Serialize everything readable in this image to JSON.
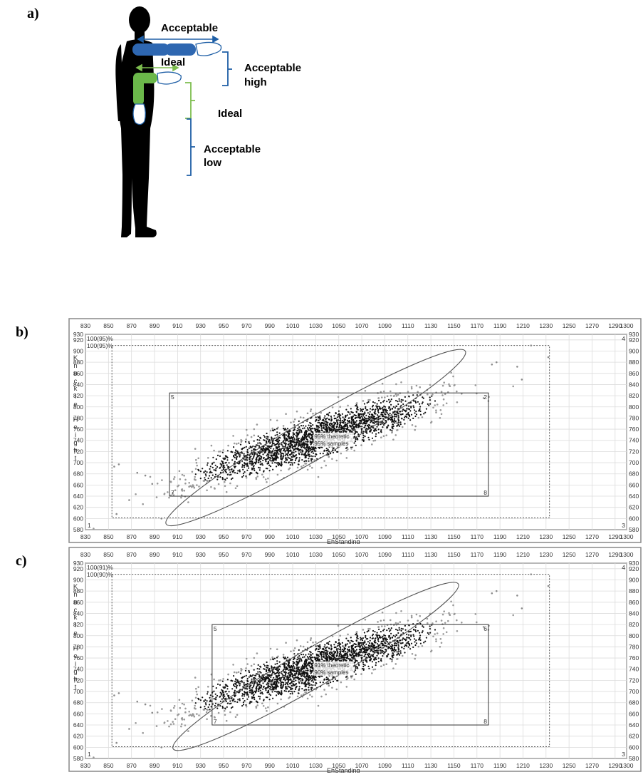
{
  "panels": {
    "a": {
      "label": "a)",
      "text_acceptable": "Acceptable",
      "text_ideal_arm": "Ideal",
      "text_acceptable_high_1": "Acceptable",
      "text_acceptable_high_2": "high",
      "text_ideal": "Ideal",
      "text_acceptable_low_1": "Acceptable",
      "text_acceptable_low_2": "low",
      "colors": {
        "body": "#000000",
        "upper_arm": "#2e67b1",
        "lower_arm": "#6bb84a",
        "hand": "#ffffff",
        "blue_bracket": "#1f5fa6",
        "green_bracket": "#7dbd4f"
      }
    },
    "b": {
      "label": "b)"
    },
    "c": {
      "label": "c)"
    }
  },
  "chart_data": [
    {
      "type": "scatter",
      "panel": "b",
      "xlabel": "EhStanding",
      "ylabel": "Knuckle Height",
      "xlim": [
        830,
        1300
      ],
      "ylim": [
        580,
        930
      ],
      "x_ticks": [
        830,
        850,
        870,
        890,
        910,
        930,
        950,
        970,
        990,
        1010,
        1030,
        1050,
        1070,
        1090,
        1110,
        1130,
        1150,
        1170,
        1190,
        1210,
        1230,
        1250,
        1270,
        1290,
        1300
      ],
      "y_ticks": [
        580,
        600,
        620,
        640,
        660,
        680,
        700,
        720,
        740,
        760,
        780,
        800,
        820,
        840,
        860,
        880,
        900,
        920,
        930
      ],
      "corner_labels": {
        "top_left": "100(95)%",
        "second_left": "100(95)%"
      },
      "annotations": [
        "95% theoretic",
        "95% samples"
      ],
      "rect_solid": {
        "x": [
          903,
          1180
        ],
        "y": [
          640,
          825
        ],
        "corners": [
          "5",
          "2",
          "7",
          "8"
        ]
      },
      "rect_dashed": {
        "x": [
          853,
          1233
        ],
        "y": [
          601,
          910
        ]
      },
      "ellipse": {
        "center": [
          1030,
          745
        ],
        "semi_major": 150,
        "semi_minor": 24,
        "angle_deg": 30
      },
      "side_labels": {
        "top_right": "4",
        "bottom_left": "1",
        "bottom_right": "3"
      },
      "points": {
        "count": 2400,
        "center": [
          1030,
          745
        ],
        "sd_x": 50,
        "sd_y": 37,
        "r": 0.86,
        "color": "#111111"
      },
      "outliers": [
        [
          857,
          608
        ],
        [
          859,
          697
        ],
        [
          855,
          693
        ],
        [
          868,
          633
        ],
        [
          875,
          682
        ],
        [
          882,
          677
        ],
        [
          888,
          662
        ],
        [
          896,
          600
        ],
        [
          1183,
          876
        ],
        [
          1187,
          880
        ],
        [
          1205,
          872
        ],
        [
          1209,
          849
        ],
        [
          1217,
          910
        ],
        [
          1232,
          889
        ]
      ]
    },
    {
      "type": "scatter",
      "panel": "c",
      "xlabel": "EhStanding",
      "ylabel": "Knuckle Height",
      "xlim": [
        830,
        1300
      ],
      "ylim": [
        580,
        930
      ],
      "x_ticks": [
        830,
        850,
        870,
        890,
        910,
        930,
        950,
        970,
        990,
        1010,
        1030,
        1050,
        1070,
        1090,
        1110,
        1130,
        1150,
        1170,
        1190,
        1210,
        1230,
        1250,
        1270,
        1290,
        1300
      ],
      "y_ticks": [
        580,
        600,
        620,
        640,
        660,
        680,
        700,
        720,
        740,
        760,
        780,
        800,
        820,
        840,
        860,
        880,
        900,
        920,
        930
      ],
      "corner_labels": {
        "top_left": "100(91)%",
        "second_left": "100(90)%"
      },
      "annotations": [
        "91% theoretic",
        "90% samples"
      ],
      "rect_solid": {
        "x": [
          940,
          1180
        ],
        "y": [
          640,
          820
        ],
        "corners": [
          "5",
          "6",
          "7",
          "8"
        ]
      },
      "rect_dashed": {
        "x": [
          853,
          1233
        ],
        "y": [
          601,
          910
        ]
      },
      "ellipse": {
        "center": [
          1030,
          745
        ],
        "semi_major": 143,
        "semi_minor": 23,
        "angle_deg": 30
      },
      "side_labels": {
        "top_right": "4",
        "bottom_left": "1",
        "bottom_right": "3"
      },
      "points": {
        "count": 2400,
        "center": [
          1030,
          745
        ],
        "sd_x": 50,
        "sd_y": 37,
        "r": 0.86,
        "color": "#111111"
      },
      "outliers": [
        [
          857,
          608
        ],
        [
          859,
          697
        ],
        [
          855,
          693
        ],
        [
          868,
          633
        ],
        [
          875,
          682
        ],
        [
          882,
          677
        ],
        [
          888,
          662
        ],
        [
          896,
          600
        ],
        [
          1183,
          876
        ],
        [
          1187,
          880
        ],
        [
          1205,
          872
        ],
        [
          1209,
          849
        ],
        [
          1217,
          910
        ],
        [
          1232,
          889
        ]
      ]
    }
  ]
}
